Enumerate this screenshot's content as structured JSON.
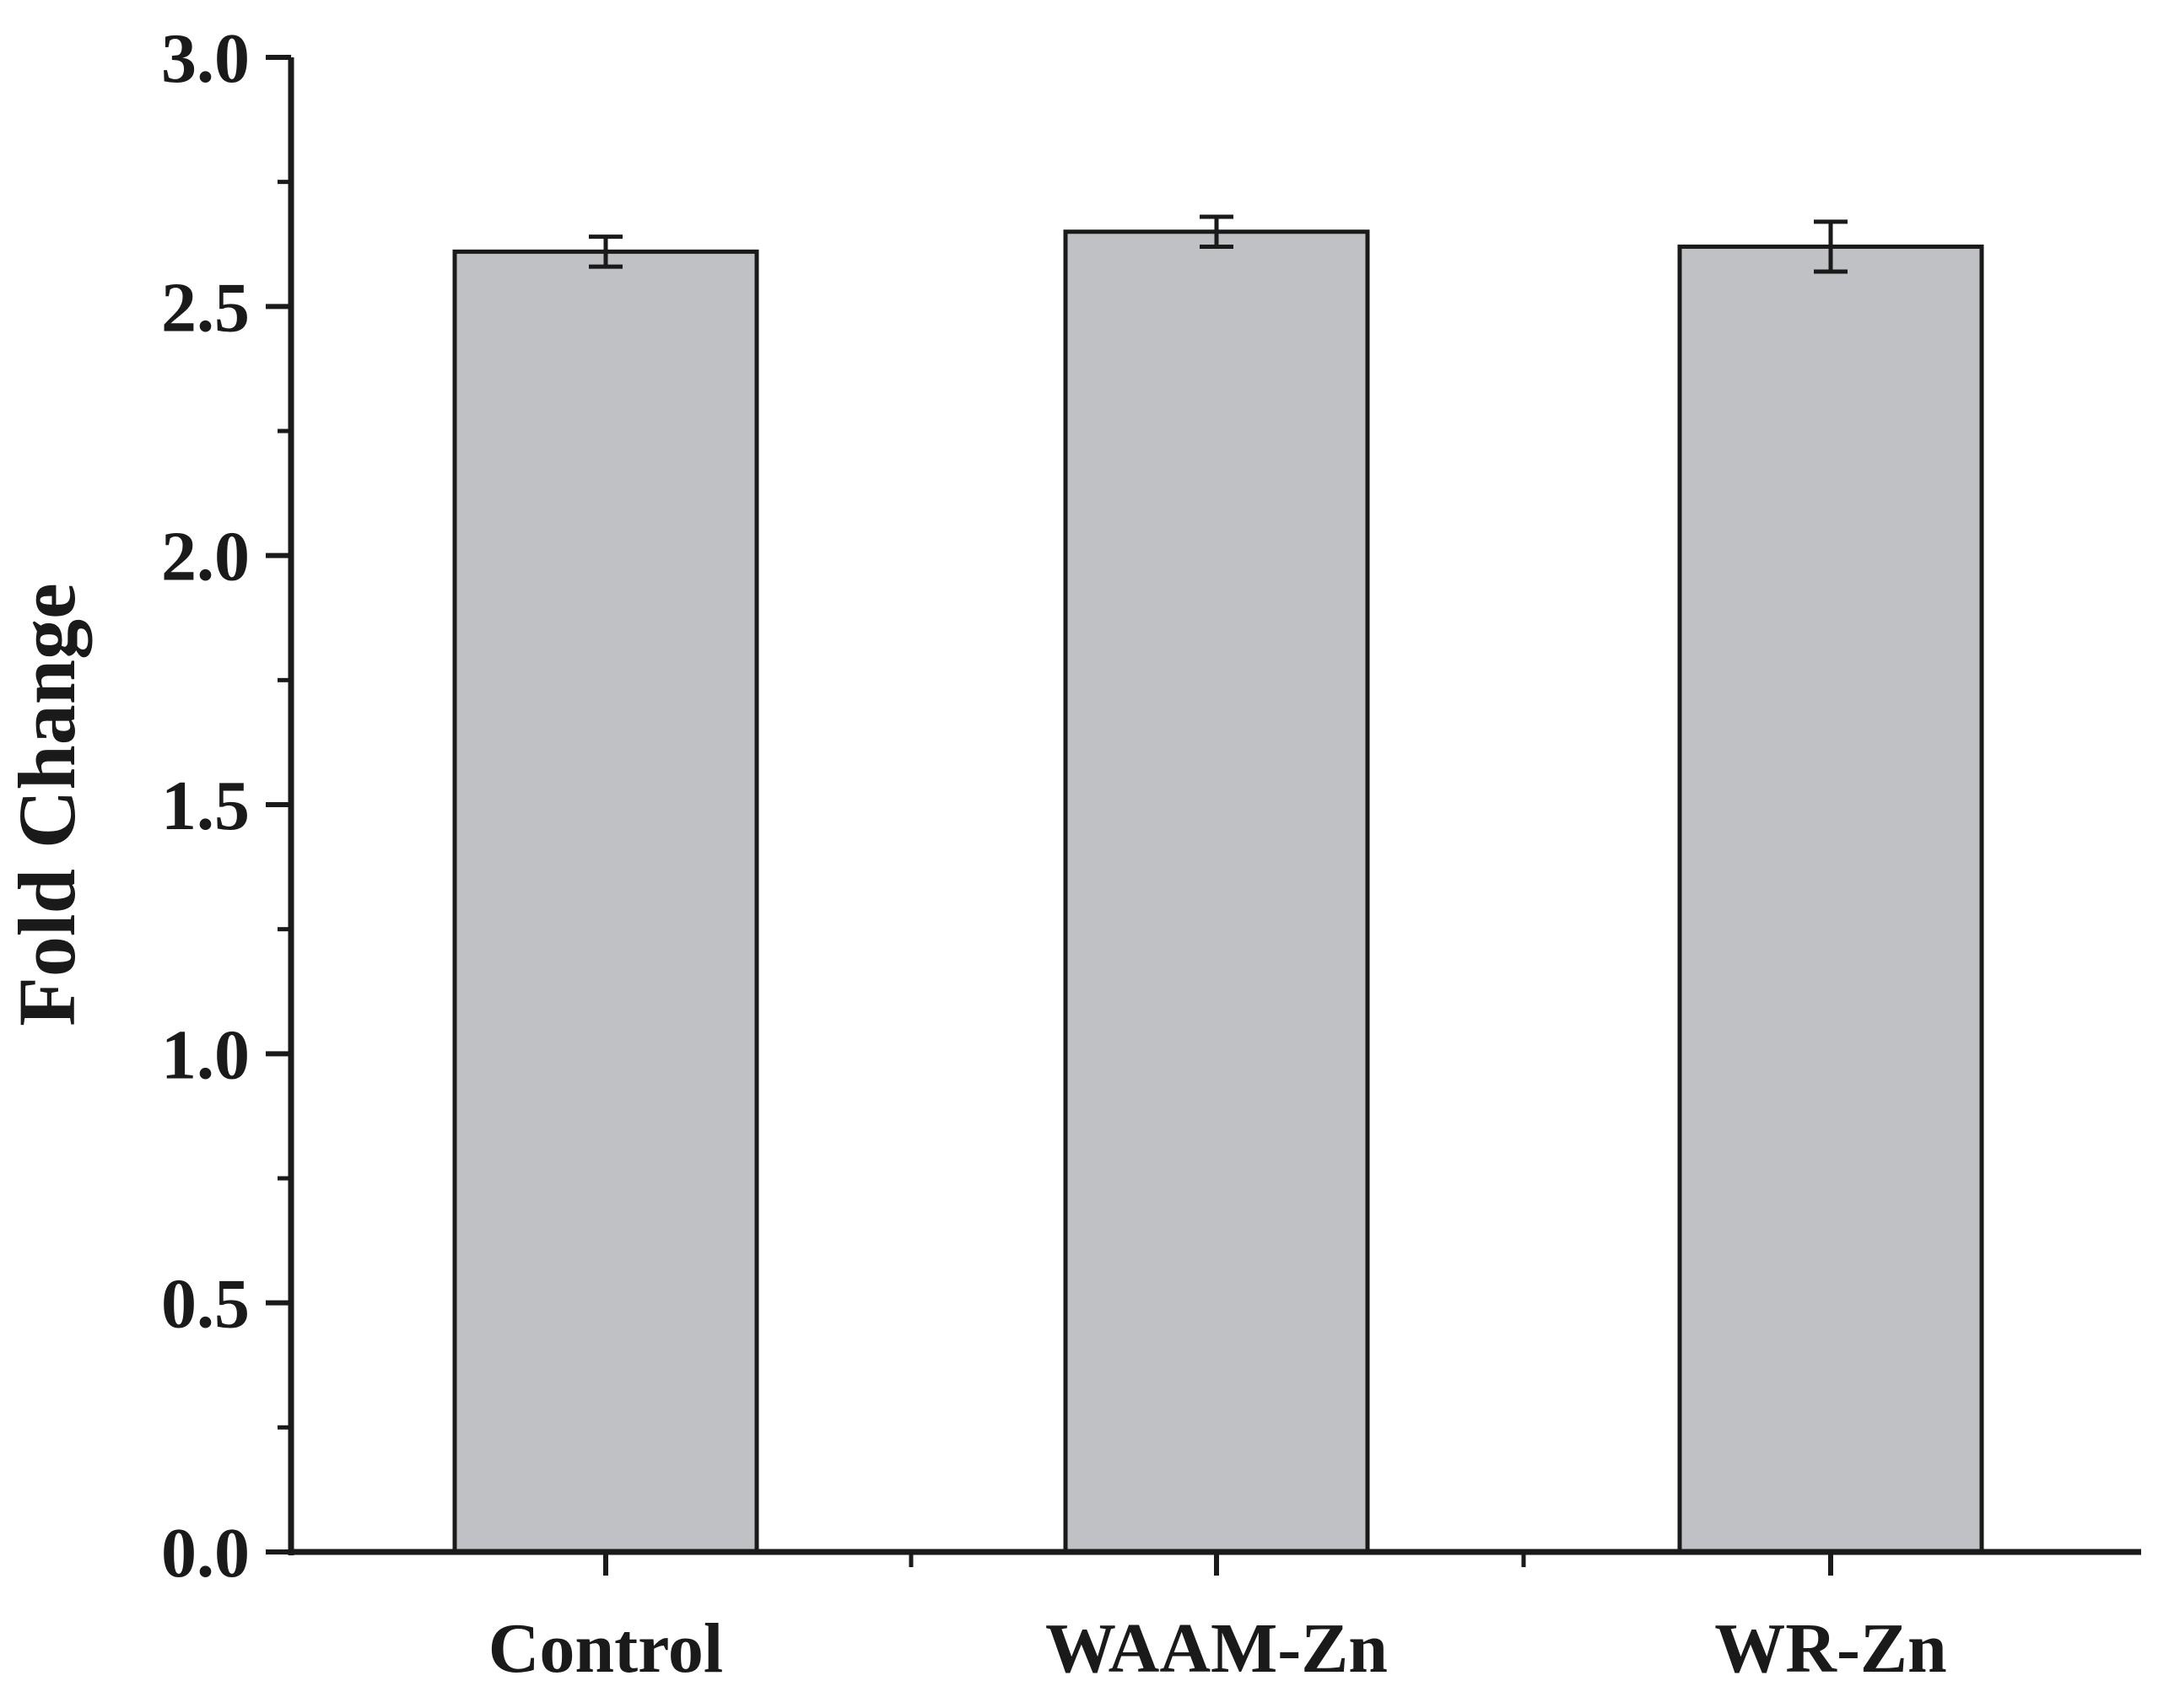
{
  "chart_data": {
    "type": "bar",
    "title": "",
    "xlabel": "",
    "ylabel": "Fold Change",
    "categories": [
      "Control",
      "WAAM-Zn",
      "WR-Zn"
    ],
    "values": [
      2.61,
      2.65,
      2.62
    ],
    "errors": [
      0.03,
      0.03,
      0.05
    ],
    "ylim": [
      0,
      3.0
    ],
    "yticks": [
      "0.0",
      "0.5",
      "1.0",
      "1.5",
      "2.0",
      "2.5",
      "3.0"
    ],
    "grid": false,
    "legend": "none",
    "bar_color": "#c0c1c4",
    "edge_color": "#1a1a1a"
  }
}
